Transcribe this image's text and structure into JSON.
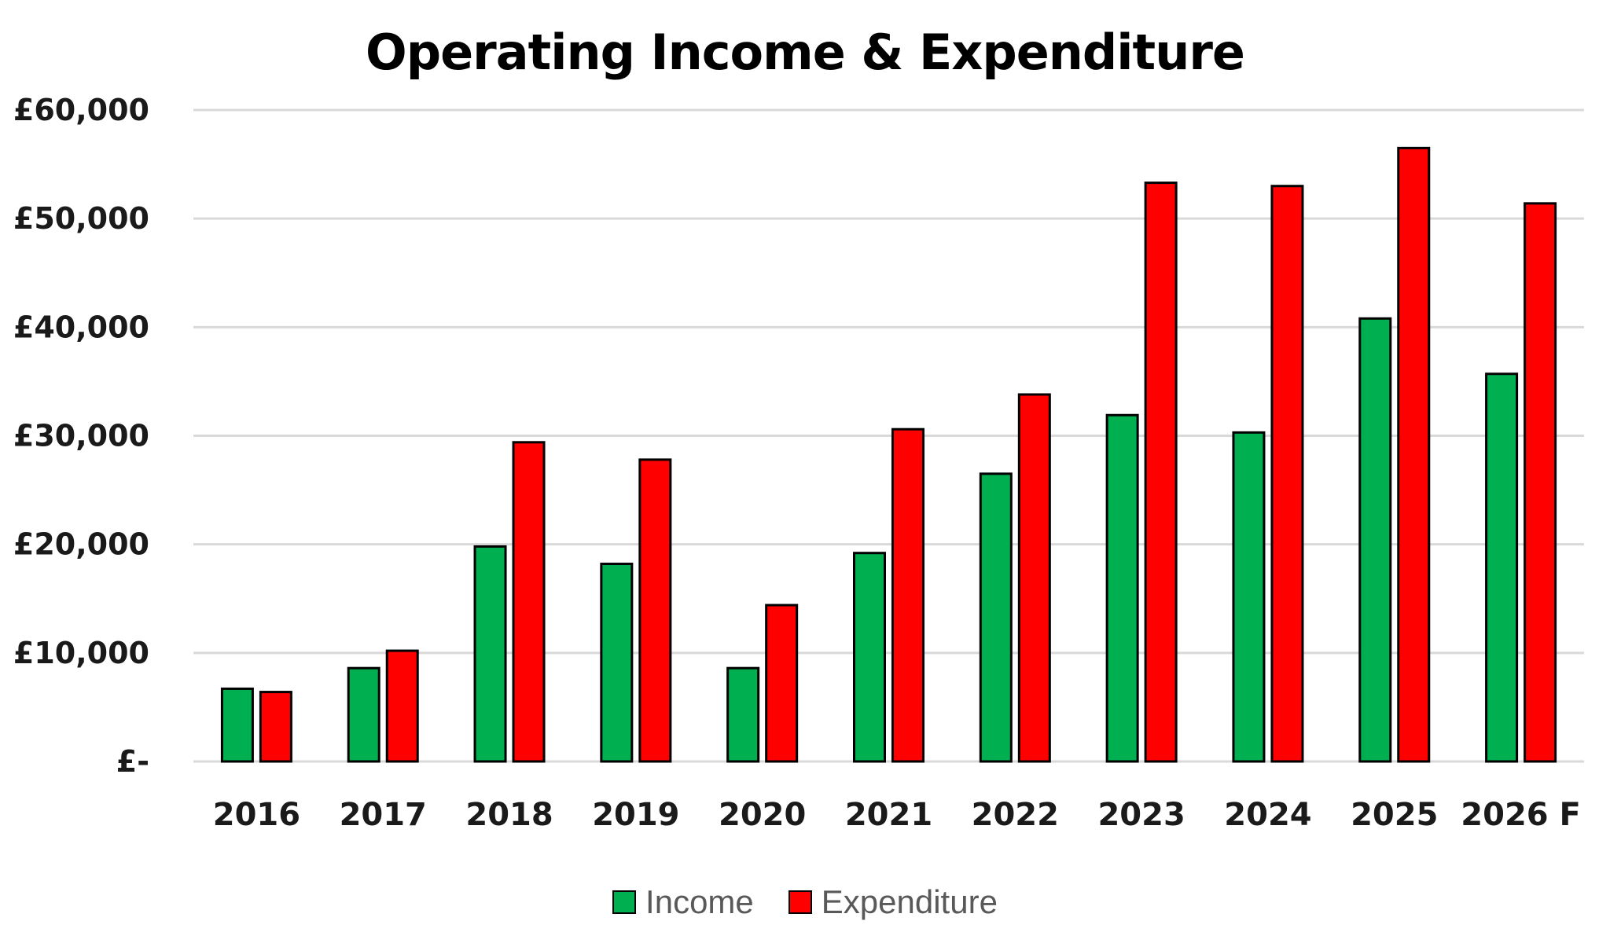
{
  "chart_data": {
    "type": "bar",
    "title": "Operating Income & Expenditure",
    "xlabel": "",
    "ylabel": "",
    "categories": [
      "2016",
      "2017",
      "2018",
      "2019",
      "2020",
      "2021",
      "2022",
      "2023",
      "2024",
      "2025",
      "2026 F"
    ],
    "series": [
      {
        "name": "Income",
        "color": "#00B050",
        "values": [
          6700,
          8600,
          19800,
          18200,
          8600,
          19200,
          26500,
          31900,
          30300,
          40800,
          35700
        ]
      },
      {
        "name": "Expenditure",
        "color": "#FF0000",
        "values": [
          6400,
          10200,
          29400,
          27800,
          14400,
          30600,
          33800,
          53300,
          53000,
          56500,
          51400
        ]
      }
    ],
    "ylim": [
      0,
      60000
    ],
    "yticks": [
      0,
      10000,
      20000,
      30000,
      40000,
      50000,
      60000
    ],
    "ytick_labels": [
      "£-",
      "£10,000",
      "£20,000",
      "£30,000",
      "£40,000",
      "£50,000",
      "£60,000"
    ],
    "grid": true,
    "legend_position": "bottom"
  }
}
